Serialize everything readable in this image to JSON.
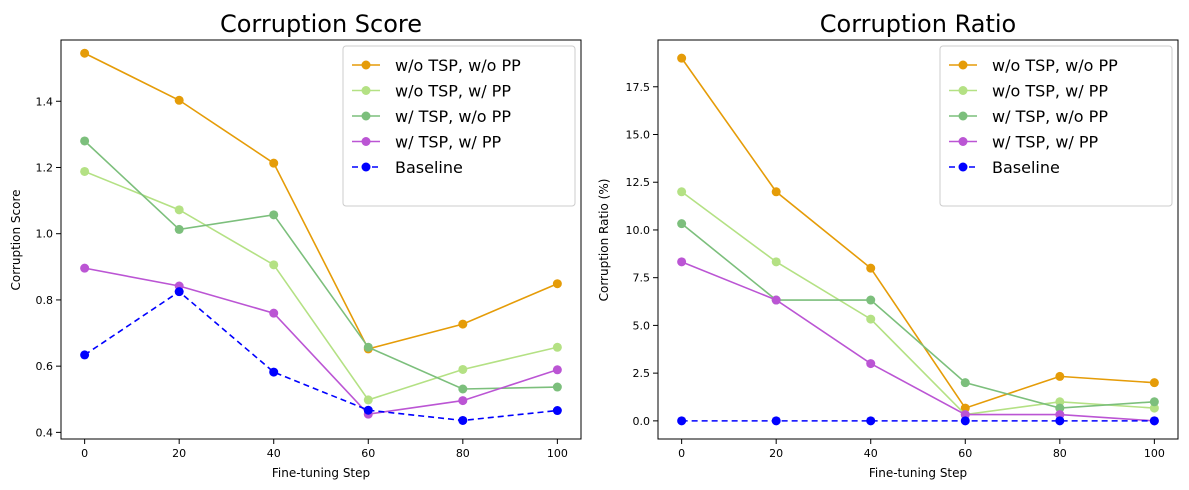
{
  "charts": [
    {
      "type": "line",
      "title": "Corruption Score",
      "xlabel": "Fine-tuning Step",
      "ylabel": "Corruption Score",
      "x": [
        0,
        20,
        40,
        60,
        80,
        100
      ],
      "xlim": [
        -5,
        105
      ],
      "ylim": [
        0.38,
        1.585
      ],
      "xticks": [
        0,
        20,
        40,
        60,
        80,
        100
      ],
      "yticks": [
        0.4,
        0.6,
        0.8,
        1.0,
        1.2,
        1.4
      ],
      "ytick_labels": [
        "0.4",
        "0.6",
        "0.8",
        "1.0",
        "1.2",
        "1.4"
      ],
      "legend_position": "top-right",
      "series": [
        {
          "name": "w/o TSP, w/o PP",
          "color": "#e59c08",
          "dashed": false,
          "values": [
            1.545,
            1.403,
            1.213,
            0.652,
            0.727,
            0.849
          ]
        },
        {
          "name": "w/o TSP, w/ PP",
          "color": "#b4e184",
          "dashed": false,
          "values": [
            1.188,
            1.072,
            0.906,
            0.498,
            0.59,
            0.657
          ]
        },
        {
          "name": "w/ TSP, w/o PP",
          "color": "#7cbf7c",
          "dashed": false,
          "values": [
            1.28,
            1.013,
            1.057,
            0.657,
            0.531,
            0.537
          ]
        },
        {
          "name": "w/ TSP, w/ PP",
          "color": "#bb55d4",
          "dashed": false,
          "values": [
            0.896,
            0.842,
            0.76,
            0.455,
            0.496,
            0.589
          ]
        },
        {
          "name": "Baseline",
          "color": "#0000ff",
          "dashed": true,
          "values": [
            0.634,
            0.825,
            0.582,
            0.467,
            0.436,
            0.466
          ]
        }
      ]
    },
    {
      "type": "line",
      "title": "Corruption Ratio",
      "xlabel": "Fine-tuning Step",
      "ylabel": "Corruption Ratio (%)",
      "x": [
        0,
        20,
        40,
        60,
        80,
        100
      ],
      "xlim": [
        -5,
        105
      ],
      "ylim": [
        -0.95,
        19.95
      ],
      "xticks": [
        0,
        20,
        40,
        60,
        80,
        100
      ],
      "yticks": [
        0.0,
        2.5,
        5.0,
        7.5,
        10.0,
        12.5,
        15.0,
        17.5
      ],
      "ytick_labels": [
        "0.0",
        "2.5",
        "5.0",
        "7.5",
        "10.0",
        "12.5",
        "15.0",
        "17.5"
      ],
      "legend_position": "top-right",
      "series": [
        {
          "name": "w/o TSP, w/o PP",
          "color": "#e59c08",
          "dashed": false,
          "values": [
            19.0,
            12.0,
            8.0,
            0.67,
            2.33,
            2.0
          ]
        },
        {
          "name": "w/o TSP, w/ PP",
          "color": "#b4e184",
          "dashed": false,
          "values": [
            12.0,
            8.33,
            5.33,
            0.33,
            1.0,
            0.67
          ]
        },
        {
          "name": "w/ TSP, w/o PP",
          "color": "#7cbf7c",
          "dashed": false,
          "values": [
            10.33,
            6.33,
            6.33,
            2.0,
            0.67,
            1.0
          ]
        },
        {
          "name": "w/ TSP, w/ PP",
          "color": "#bb55d4",
          "dashed": false,
          "values": [
            8.33,
            6.33,
            3.0,
            0.33,
            0.33,
            0.0
          ]
        },
        {
          "name": "Baseline",
          "color": "#0000ff",
          "dashed": true,
          "values": [
            0.0,
            0.0,
            0.0,
            0.0,
            0.0,
            0.0
          ]
        }
      ]
    }
  ]
}
